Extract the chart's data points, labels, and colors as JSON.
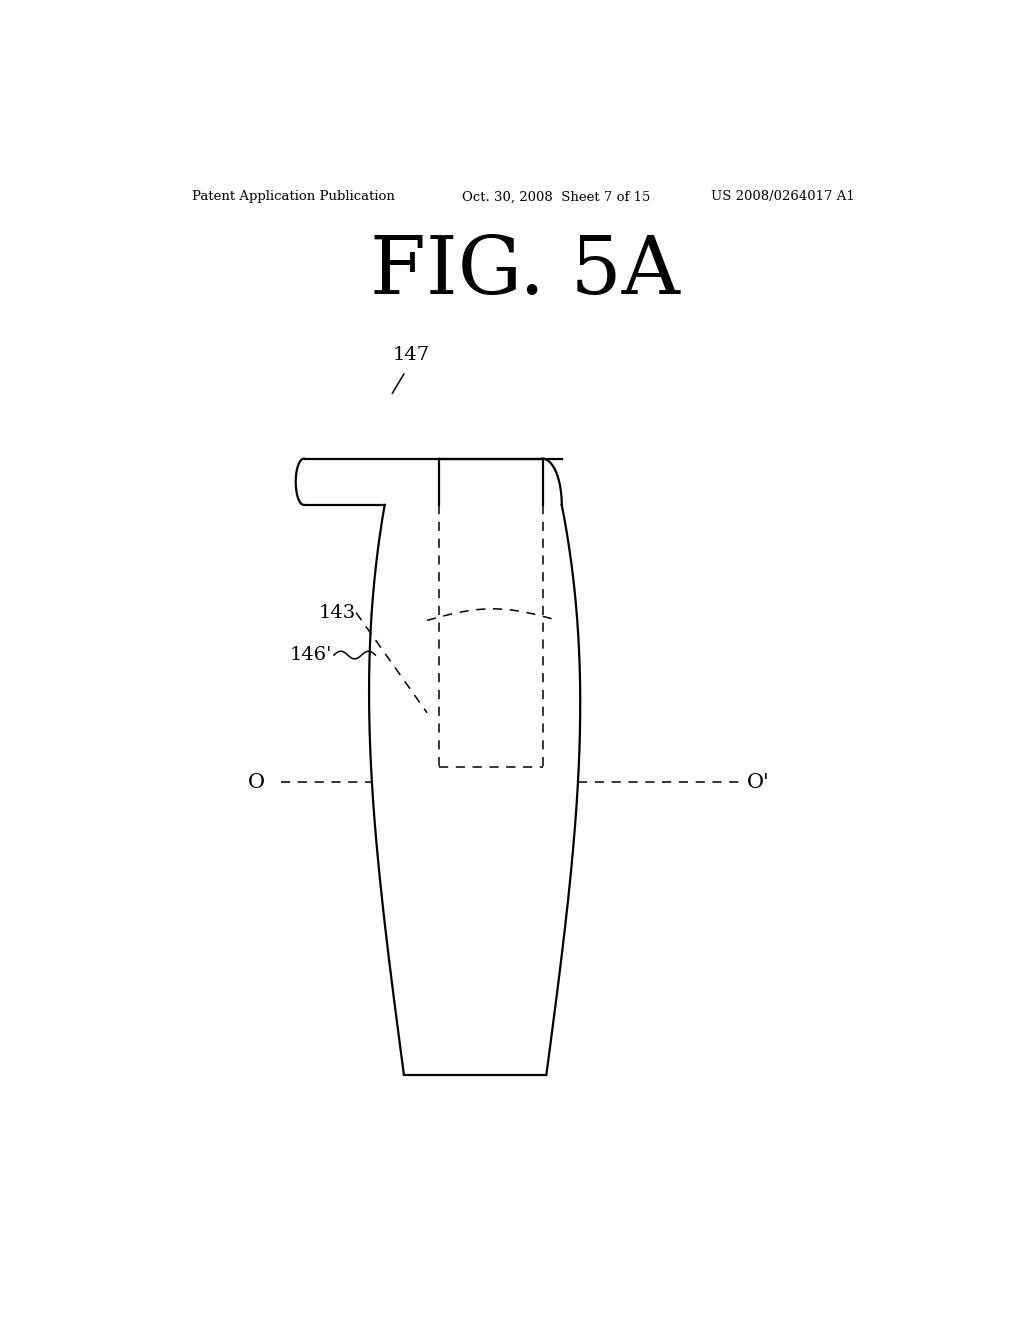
{
  "background_color": "#ffffff",
  "header_left": "Patent Application Publication",
  "header_center": "Oct. 30, 2008  Sheet 7 of 15",
  "header_right": "US 2008/0264017 A1",
  "fig_label": "FIG. 5A",
  "lw": 1.6,
  "lw_thin": 1.1
}
